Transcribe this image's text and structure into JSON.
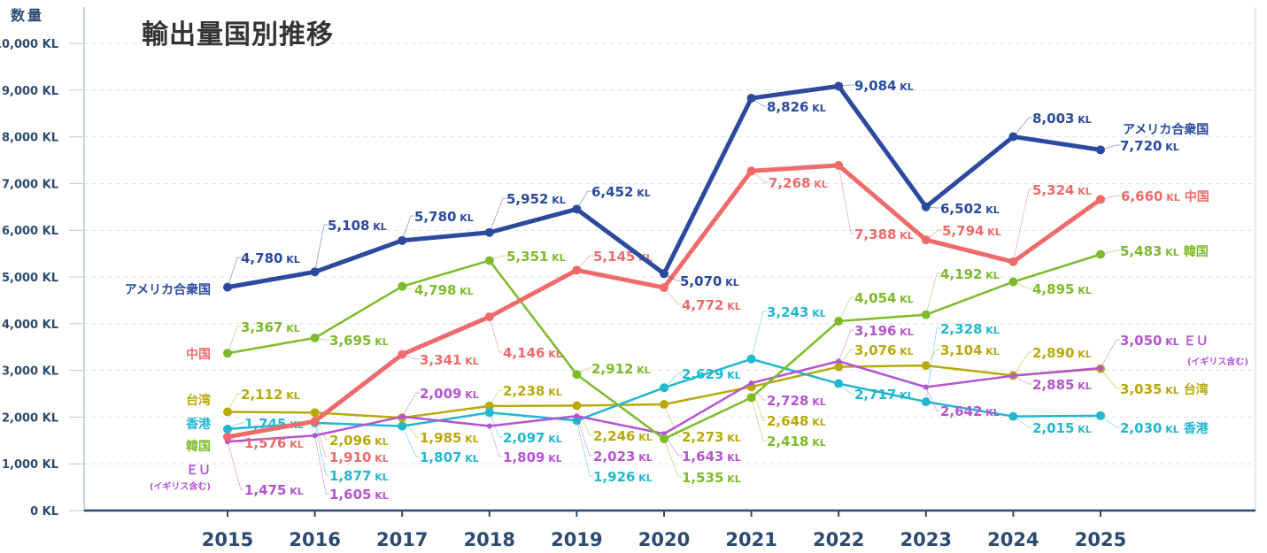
{
  "chart_data": {
    "type": "line",
    "title": "輸出量国別推移",
    "ylabel": "数量",
    "unit": "KL",
    "ylim": [
      0,
      10000
    ],
    "yticks": [
      "0 KL",
      "1,000 KL",
      "2,000 KL",
      "3,000 KL",
      "4,000 KL",
      "5,000 KL",
      "6,000 KL",
      "7,000 KL",
      "8,000 KL",
      "9,000 KL",
      "10,000 KL"
    ],
    "grid": true,
    "categories": [
      "2015",
      "2016",
      "2017",
      "2018",
      "2019",
      "2020",
      "2021",
      "2022",
      "2023",
      "2024",
      "2025"
    ],
    "series": [
      {
        "name": "アメリカ合衆国",
        "color": "#2b4a9e",
        "values": [
          4780,
          5108,
          5780,
          5952,
          6452,
          5070,
          8826,
          9084,
          6502,
          8003,
          7720
        ]
      },
      {
        "name": "中国",
        "color": "#ef6b6b",
        "values": [
          1576,
          1910,
          3341,
          4146,
          5145,
          4772,
          7268,
          7388,
          5794,
          5324,
          6660
        ]
      },
      {
        "name": "韓国",
        "color": "#7dbb2a",
        "values": [
          3367,
          3695,
          4798,
          5351,
          2912,
          1535,
          2418,
          4054,
          4192,
          4895,
          5483
        ]
      },
      {
        "name": "台湾",
        "color": "#b8a90c",
        "values": [
          2112,
          2096,
          1985,
          2238,
          2246,
          2273,
          2648,
          3076,
          3104,
          2890,
          3035
        ]
      },
      {
        "name": "香港",
        "color": "#22b7cf",
        "values": [
          1745,
          1877,
          1807,
          2097,
          1926,
          2629,
          3243,
          2717,
          2328,
          2015,
          2030
        ]
      },
      {
        "name": "ＥＵ",
        "subname": "(イギリス含む)",
        "color": "#b455d0",
        "values": [
          1475,
          1605,
          2009,
          1809,
          2023,
          1643,
          2728,
          3196,
          2642,
          2885,
          3050
        ]
      }
    ]
  }
}
